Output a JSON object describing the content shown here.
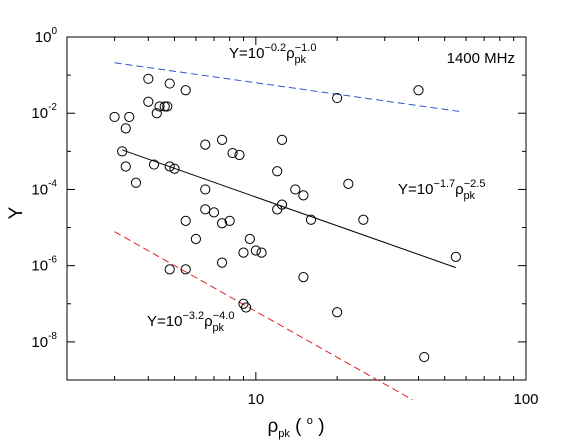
{
  "chart_data": {
    "type": "scatter",
    "title": "",
    "xlabel": {
      "main": "ρ",
      "sub": "pk",
      "units": "( ° )",
      "open": "(",
      "deg": "o",
      "close": ")"
    },
    "ylabel": "Y",
    "xscale": "log",
    "yscale": "log",
    "xlim": [
      2,
      100
    ],
    "ylim": [
      1e-09,
      1
    ],
    "x_ticks": [
      {
        "value": 10,
        "label": "10"
      },
      {
        "value": 100,
        "label": "100"
      }
    ],
    "y_ticks": [
      {
        "value": 1,
        "base": "10",
        "exp": "0"
      },
      {
        "value": 0.01,
        "base": "10",
        "exp": "-2"
      },
      {
        "value": 0.0001,
        "base": "10",
        "exp": "-4"
      },
      {
        "value": 1e-06,
        "base": "10",
        "exp": "-6"
      },
      {
        "value": 1e-08,
        "base": "10",
        "exp": "-8"
      }
    ],
    "frequency_label": "1400 MHz",
    "lines": [
      {
        "id": "upper",
        "color": "#3355cc",
        "dash": "dashed",
        "x": [
          3.0,
          57.0
        ],
        "log_intercept": -0.2,
        "slope": -1.0,
        "label": {
          "prefix": "Y=10",
          "exp": "−0.2",
          "rho": "ρ",
          "sub": "pk",
          "exp2": "−1.0"
        }
      },
      {
        "id": "middle",
        "color": "#000000",
        "dash": "solid",
        "x": [
          3.2,
          55.0
        ],
        "log_intercept": -1.7,
        "slope": -2.5,
        "label": {
          "prefix": "Y=10",
          "exp": "−1.7",
          "rho": "ρ",
          "sub": "pk",
          "exp2": "−2.5"
        }
      },
      {
        "id": "lower",
        "color": "#dd2222",
        "dash": "dashed",
        "x": [
          3.0,
          38.0
        ],
        "log_intercept": -3.2,
        "slope": -4.0,
        "label": {
          "prefix": "Y=10",
          "exp": "−3.2",
          "rho": "ρ",
          "sub": "pk",
          "exp2": "−4.0"
        }
      }
    ],
    "points": [
      [
        3.0,
        0.008
      ],
      [
        3.4,
        0.008
      ],
      [
        3.3,
        0.004
      ],
      [
        4.0,
        0.08
      ],
      [
        4.8,
        0.06
      ],
      [
        5.5,
        0.04
      ],
      [
        4.0,
        0.02
      ],
      [
        4.4,
        0.015
      ],
      [
        4.7,
        0.015
      ],
      [
        4.3,
        0.01
      ],
      [
        4.6,
        0.015
      ],
      [
        20.0,
        0.025
      ],
      [
        40.0,
        0.04
      ],
      [
        3.2,
        0.001
      ],
      [
        3.3,
        0.0004
      ],
      [
        3.6,
        0.00015
      ],
      [
        4.2,
        0.00045
      ],
      [
        4.8,
        0.0004
      ],
      [
        5.0,
        0.00035
      ],
      [
        6.5,
        0.0015
      ],
      [
        7.5,
        0.002
      ],
      [
        8.2,
        0.0009
      ],
      [
        8.7,
        0.0008
      ],
      [
        12.5,
        0.002
      ],
      [
        12.0,
        0.0003
      ],
      [
        14.0,
        0.0001
      ],
      [
        15.0,
        7e-05
      ],
      [
        12.0,
        3e-05
      ],
      [
        12.5,
        4e-05
      ],
      [
        22.0,
        0.00014
      ],
      [
        6.5,
        0.0001
      ],
      [
        6.5,
        3e-05
      ],
      [
        7.0,
        2.5e-05
      ],
      [
        5.5,
        1.5e-05
      ],
      [
        8.0,
        1.5e-05
      ],
      [
        7.5,
        1.3e-05
      ],
      [
        16.0,
        1.6e-05
      ],
      [
        25.0,
        1.6e-05
      ],
      [
        6.0,
        5e-06
      ],
      [
        9.5,
        5e-06
      ],
      [
        10.0,
        2.5e-06
      ],
      [
        10.5,
        2.2e-06
      ],
      [
        9.0,
        2.2e-06
      ],
      [
        7.5,
        1.2e-06
      ],
      [
        5.5,
        8e-07
      ],
      [
        4.8,
        8e-07
      ],
      [
        15.0,
        5e-07
      ],
      [
        55.0,
        1.7e-06
      ],
      [
        9.0,
        1e-07
      ],
      [
        9.2,
        8e-08
      ],
      [
        20.0,
        6e-08
      ],
      [
        42.0,
        4e-09
      ]
    ]
  }
}
